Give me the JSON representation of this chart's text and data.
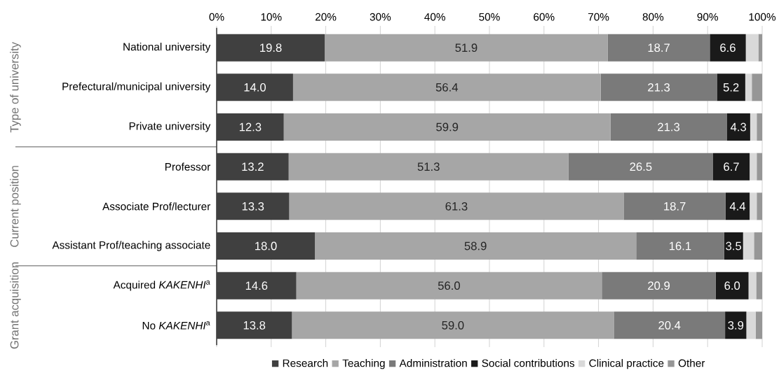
{
  "chart_data": {
    "type": "bar",
    "orientation": "horizontal",
    "stacked": true,
    "categories": [
      "National university",
      "Prefectural/municipal university",
      "Private university",
      "Professor",
      "Associate Prof/lecturer",
      "Assistant Prof/teaching associate",
      "Acquired *KAKENHI*$^{a}$",
      "No *KAKENHI*$^{a}$"
    ],
    "series": [
      {
        "name": "Research",
        "color": "#404040",
        "values": [
          19.8,
          14.0,
          12.3,
          13.2,
          13.3,
          18.0,
          14.6,
          13.8
        ],
        "value_labels": [
          "19.8",
          "14.0",
          "12.3",
          "13.2",
          "13.3",
          "18.0",
          "14.6",
          "13.8"
        ]
      },
      {
        "name": "Teaching",
        "color": "#a6a6a6",
        "values": [
          51.9,
          56.4,
          59.9,
          51.3,
          61.3,
          58.9,
          56.0,
          59.0
        ],
        "value_labels": [
          "51.9",
          "56.4",
          "59.9",
          "51.3",
          "61.3",
          "58.9",
          "56.0",
          "59.0"
        ]
      },
      {
        "name": "Administration",
        "color": "#7a7a7a",
        "values": [
          18.7,
          21.3,
          21.3,
          26.5,
          18.7,
          16.1,
          20.9,
          20.4
        ],
        "value_labels": [
          "18.7",
          "21.3",
          "21.3",
          "26.5",
          "18.7",
          "16.1",
          "20.9",
          "20.4"
        ]
      },
      {
        "name": "Social contributions",
        "color": "#1a1a1a",
        "values": [
          6.6,
          5.2,
          4.3,
          6.7,
          4.4,
          3.5,
          6.0,
          3.9
        ],
        "value_labels": [
          "6.6",
          "5.2",
          "4.3",
          "6.7",
          "4.4",
          "3.5",
          "6.0",
          "3.9"
        ]
      },
      {
        "name": "Clinical practice",
        "color": "#d9d9d9",
        "values": [
          2.3,
          1.2,
          1.2,
          1.3,
          1.3,
          2.0,
          1.4,
          1.7
        ],
        "value_labels": [
          null,
          null,
          null,
          null,
          null,
          null,
          null,
          null
        ]
      },
      {
        "name": "Other",
        "color": "#969696",
        "values": [
          0.7,
          1.9,
          1.0,
          1.0,
          1.0,
          1.5,
          1.1,
          1.2
        ],
        "value_labels": [
          null,
          null,
          null,
          null,
          null,
          null,
          null,
          null
        ]
      }
    ],
    "xlim": [
      0,
      100
    ],
    "xticks": [
      {
        "value": 0,
        "label": "0%"
      },
      {
        "value": 10,
        "label": "10%"
      },
      {
        "value": 20,
        "label": "20%"
      },
      {
        "value": 30,
        "label": "30%"
      },
      {
        "value": 40,
        "label": "40%"
      },
      {
        "value": 50,
        "label": "50%"
      },
      {
        "value": 60,
        "label": "60%"
      },
      {
        "value": 70,
        "label": "70%"
      },
      {
        "value": 80,
        "label": "80%"
      },
      {
        "value": 90,
        "label": "90%"
      },
      {
        "value": 100,
        "label": "100%"
      }
    ],
    "grid": "x",
    "legend": "bottom",
    "annotations": [
      "Type of university",
      "Current position",
      "Grant acquisition"
    ]
  }
}
